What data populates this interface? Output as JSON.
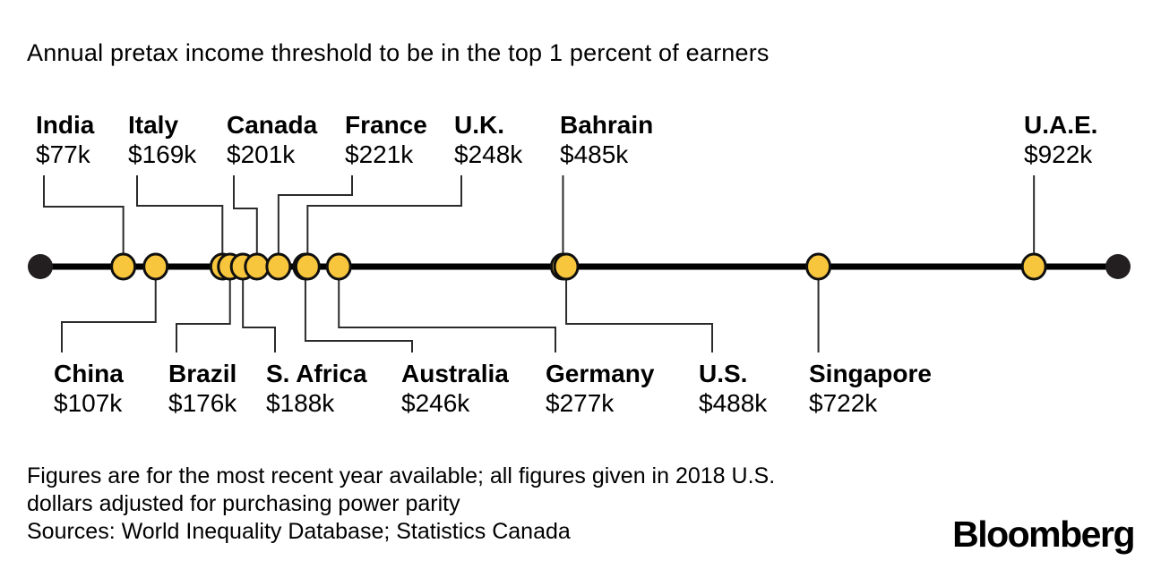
{
  "title": "Annual pretax income threshold to be in the top 1 percent of earners",
  "footnote": {
    "line1": "Figures are for the most recent year available; all figures given in 2018 U.S.",
    "line2": "dollars adjusted for purchasing power parity",
    "sources": "Sources: World Inequality Database; Statistics Canada"
  },
  "brand": "Bloomberg",
  "colors": {
    "dot_fill": "#F8C63C",
    "dot_stroke": "#0f0f0f",
    "endpoint_fill": "#231f20",
    "axis_line": "#000000",
    "leader_line": "#2b2b2b",
    "text": "#000000",
    "background": "#ffffff"
  },
  "chart_data": {
    "type": "scatter",
    "subtype": "one-dimensional-dot-plot",
    "title": "Annual pretax income threshold to be in the top 1 percent of earners",
    "xlabel": "",
    "ylabel": "",
    "axis_range_thousand_usd": [
      0,
      1000
    ],
    "grid": false,
    "legend": "none",
    "points": [
      {
        "country": "India",
        "value_label": "$77k",
        "value_k_usd": 77,
        "label_side": "top"
      },
      {
        "country": "China",
        "value_label": "$107k",
        "value_k_usd": 107,
        "label_side": "bottom"
      },
      {
        "country": "Italy",
        "value_label": "$169k",
        "value_k_usd": 169,
        "label_side": "top"
      },
      {
        "country": "Brazil",
        "value_label": "$176k",
        "value_k_usd": 176,
        "label_side": "bottom"
      },
      {
        "country": "S. Africa",
        "value_label": "$188k",
        "value_k_usd": 188,
        "label_side": "bottom"
      },
      {
        "country": "Canada",
        "value_label": "$201k",
        "value_k_usd": 201,
        "label_side": "top"
      },
      {
        "country": "France",
        "value_label": "$221k",
        "value_k_usd": 221,
        "label_side": "top"
      },
      {
        "country": "Australia",
        "value_label": "$246k",
        "value_k_usd": 246,
        "label_side": "bottom"
      },
      {
        "country": "U.K.",
        "value_label": "$248k",
        "value_k_usd": 248,
        "label_side": "top"
      },
      {
        "country": "Germany",
        "value_label": "$277k",
        "value_k_usd": 277,
        "label_side": "bottom"
      },
      {
        "country": "Bahrain",
        "value_label": "$485k",
        "value_k_usd": 485,
        "label_side": "top"
      },
      {
        "country": "U.S.",
        "value_label": "$488k",
        "value_k_usd": 488,
        "label_side": "bottom"
      },
      {
        "country": "Singapore",
        "value_label": "$722k",
        "value_k_usd": 722,
        "label_side": "bottom"
      },
      {
        "country": "U.A.E.",
        "value_label": "$922k",
        "value_k_usd": 922,
        "label_side": "top"
      }
    ]
  }
}
